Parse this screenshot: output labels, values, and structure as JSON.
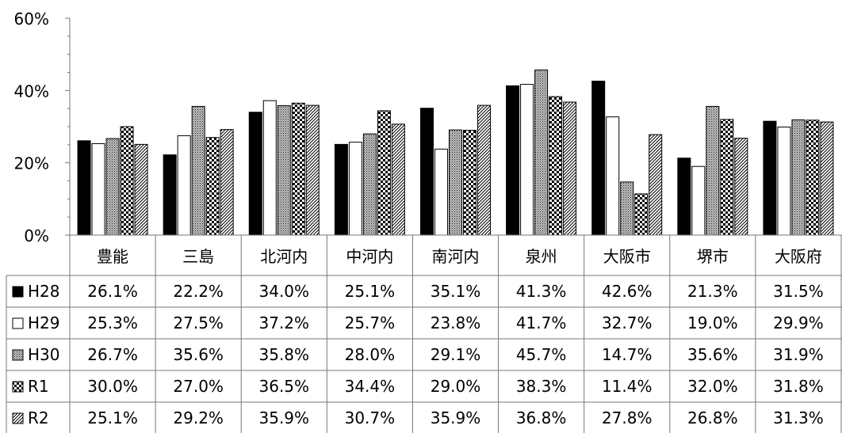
{
  "chart_data": {
    "type": "bar",
    "categories": [
      "豊能",
      "三島",
      "北河内",
      "中河内",
      "南河内",
      "泉州",
      "大阪市",
      "堺市",
      "大阪府"
    ],
    "yticks": [
      "0%",
      "20%",
      "40%",
      "60%"
    ],
    "ylim": [
      0,
      60
    ],
    "y_unit": "%",
    "grid": false,
    "legend": "data-table-rows",
    "series": [
      {
        "name": "H28",
        "pattern": "solid-black",
        "values": [
          26.1,
          22.2,
          34.0,
          25.1,
          35.1,
          41.3,
          42.6,
          21.3,
          31.5
        ],
        "labels": [
          "26.1%",
          "22.2%",
          "34.0%",
          "25.1%",
          "35.1%",
          "41.3%",
          "42.6%",
          "21.3%",
          "31.5%"
        ]
      },
      {
        "name": "H29",
        "pattern": "white",
        "values": [
          25.3,
          27.5,
          37.2,
          25.7,
          23.8,
          41.7,
          32.7,
          19.0,
          29.9
        ],
        "labels": [
          "25.3%",
          "27.5%",
          "37.2%",
          "25.7%",
          "23.8%",
          "41.7%",
          "32.7%",
          "19.0%",
          "29.9%"
        ]
      },
      {
        "name": "H30",
        "pattern": "gray-dots",
        "values": [
          26.7,
          35.6,
          35.8,
          28.0,
          29.1,
          45.7,
          14.7,
          35.6,
          31.9
        ],
        "labels": [
          "26.7%",
          "35.6%",
          "35.8%",
          "28.0%",
          "29.1%",
          "45.7%",
          "14.7%",
          "35.6%",
          "31.9%"
        ]
      },
      {
        "name": "R1",
        "pattern": "checkerboard",
        "values": [
          30.0,
          27.0,
          36.5,
          34.4,
          29.0,
          38.3,
          11.4,
          32.0,
          31.8
        ],
        "labels": [
          "30.0%",
          "27.0%",
          "36.5%",
          "34.4%",
          "29.0%",
          "38.3%",
          "11.4%",
          "32.0%",
          "31.8%"
        ]
      },
      {
        "name": "R2",
        "pattern": "diagonal-hatch",
        "values": [
          25.1,
          29.2,
          35.9,
          30.7,
          35.9,
          36.8,
          27.8,
          26.8,
          31.3
        ],
        "labels": [
          "25.1%",
          "29.2%",
          "35.9%",
          "30.7%",
          "35.9%",
          "36.8%",
          "27.8%",
          "26.8%",
          "31.3%"
        ]
      }
    ]
  }
}
